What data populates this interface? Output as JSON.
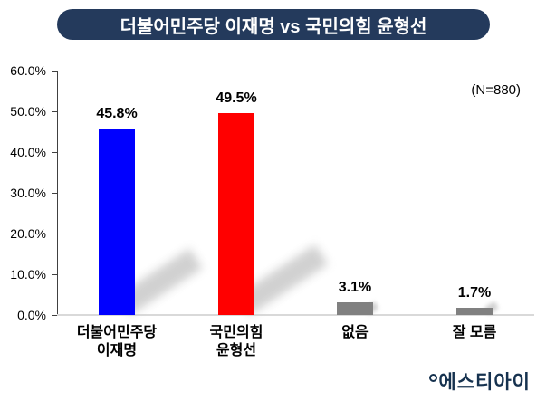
{
  "title": "더불어민주당 이재명 vs 국민의힘 윤형선",
  "sample_label": "(N=880)",
  "logo_text": "에스티아이",
  "colors": {
    "title_bg": "#243a5c",
    "axis_line": "#404040",
    "baseline": "#d9d9d9",
    "shadow": "#c9c9c9",
    "logo": "#16324f"
  },
  "chart_data": {
    "type": "bar",
    "title": "더불어민주당 이재명 vs 국민의힘 윤형선",
    "annotation": "(N=880)",
    "categories": [
      [
        "더불어민주당",
        "이재명"
      ],
      [
        "국민의힘",
        "윤형선"
      ],
      [
        "없음"
      ],
      [
        "잘 모름"
      ]
    ],
    "values": [
      45.8,
      49.5,
      3.1,
      1.7
    ],
    "value_labels": [
      "45.8%",
      "49.5%",
      "3.1%",
      "1.7%"
    ],
    "bar_colors": [
      "#0000ff",
      "#ff0000",
      "#808080",
      "#808080"
    ],
    "xlabel": "",
    "ylabel": "",
    "ylim": [
      0,
      60
    ],
    "ytick_labels": [
      "60.0%",
      "50.0%",
      "40.0%",
      "30.0%",
      "20.0%",
      "10.0%",
      "0.0%"
    ],
    "grid": false,
    "legend": false,
    "bar_shadow_effect": "diagonal perspective shadow up-right from bar base"
  }
}
